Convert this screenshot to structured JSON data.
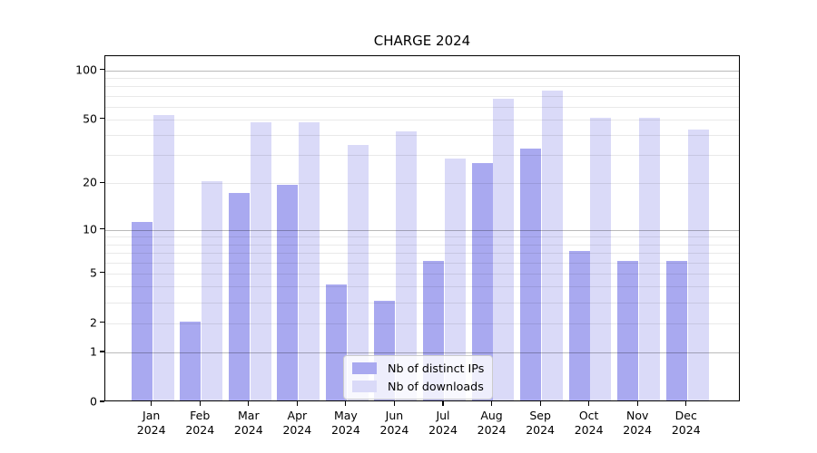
{
  "chart": {
    "title": "CHARGE 2024"
  },
  "chart_data": {
    "type": "bar",
    "title": "CHARGE 2024",
    "categories": [
      "Jan",
      "Feb",
      "Mar",
      "Apr",
      "May",
      "Jun",
      "Jul",
      "Aug",
      "Sep",
      "Oct",
      "Nov",
      "Dec"
    ],
    "category_year": "2024",
    "series": [
      {
        "name": "Nb of distinct IPs",
        "color": "#a9a9f0",
        "values": [
          11,
          2,
          17,
          19,
          4,
          3,
          6,
          26,
          32,
          7,
          6,
          6
        ]
      },
      {
        "name": "Nb of downloads",
        "color": "#dadaf8",
        "values": [
          52,
          20,
          47,
          47,
          34,
          41,
          28,
          65,
          73,
          50,
          50,
          42
        ]
      }
    ],
    "xlabel": "",
    "ylabel": "",
    "yscale": "symlog",
    "y_major_ticks": [
      0,
      1,
      2,
      5,
      10,
      20,
      50,
      100
    ],
    "y_minor_gridlines": [
      2,
      3,
      4,
      5,
      6,
      7,
      8,
      9,
      20,
      30,
      40,
      50,
      60,
      70,
      80,
      90
    ],
    "y_decade_gridlines": [
      1,
      10,
      100
    ],
    "ylim": [
      0,
      122
    ],
    "grid": true,
    "legend_position": "lower center"
  }
}
